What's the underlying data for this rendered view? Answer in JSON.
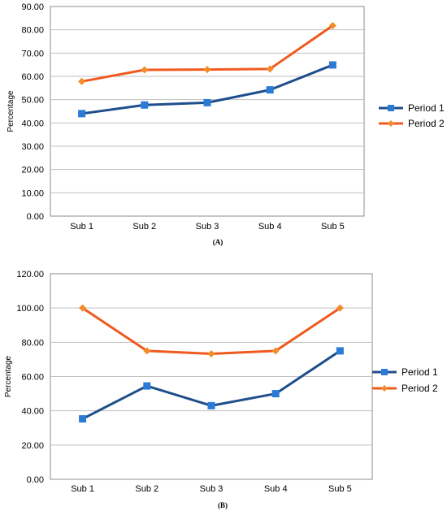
{
  "colors": {
    "period1": "#1F4E8C",
    "period1_marker": "#2B7BD6",
    "period2": "#F05A1F",
    "period2_marker": "#F28C28",
    "grid": "#BFBFBF",
    "plot_border": "#8C8C8C"
  },
  "chart_data": [
    {
      "type": "line",
      "panel_label": "(A)",
      "categories": [
        "Sub 1",
        "Sub 2",
        "Sub 3",
        "Sub 4",
        "Sub 5"
      ],
      "ylabel": "Percentage",
      "xlabel": "",
      "ylim": [
        0,
        90
      ],
      "yticks": [
        "0.00",
        "10.00",
        "20.00",
        "30.00",
        "40.00",
        "50.00",
        "60.00",
        "70.00",
        "80.00",
        "90.00"
      ],
      "grid": true,
      "legend": "right",
      "series": [
        {
          "name": "Period 1",
          "marker": "square",
          "values": [
            44,
            47.7,
            48.7,
            54.2,
            64.9
          ]
        },
        {
          "name": "Period 2",
          "marker": "diamond",
          "values": [
            57.8,
            62.8,
            62.9,
            63.2,
            81.8
          ]
        }
      ]
    },
    {
      "type": "line",
      "panel_label": "(B)",
      "categories": [
        "Sub 1",
        "Sub 2",
        "Sub 3",
        "Sub 4",
        "Sub 5"
      ],
      "ylabel": "Percentage",
      "xlabel": "",
      "ylim": [
        0,
        120
      ],
      "yticks": [
        "0.00",
        "20.00",
        "40.00",
        "60.00",
        "80.00",
        "100.00",
        "120.00"
      ],
      "grid": true,
      "legend": "right",
      "series": [
        {
          "name": "Period 1",
          "marker": "square",
          "values": [
            35.3,
            54.5,
            43,
            50,
            75
          ]
        },
        {
          "name": "Period 2",
          "marker": "diamond",
          "values": [
            100,
            75,
            73.3,
            75,
            100
          ]
        }
      ]
    }
  ]
}
